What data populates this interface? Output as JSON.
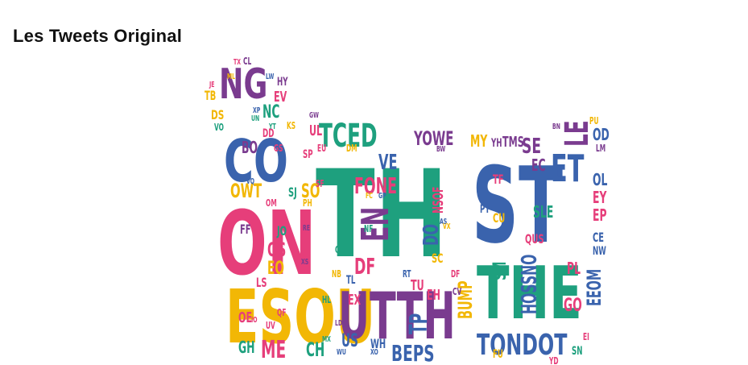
{
  "title": "Les Tweets Original",
  "palette": {
    "blue": "#3a63ad",
    "green": "#1ea07e",
    "purple": "#7a3b8f",
    "pink": "#e63e7a",
    "yellow": "#f2b705"
  },
  "words": [
    {
      "text": "TH",
      "color": "green",
      "vertical": false
    },
    {
      "text": "ST",
      "color": "blue",
      "vertical": false
    },
    {
      "text": "THE",
      "color": "green",
      "vertical": false
    },
    {
      "text": "ON",
      "color": "pink",
      "vertical": false
    },
    {
      "text": "CO",
      "color": "blue",
      "vertical": false
    },
    {
      "text": "ESOU",
      "color": "yellow",
      "vertical": false
    },
    {
      "text": "UTTH",
      "color": "purple",
      "vertical": false
    },
    {
      "text": "NG",
      "color": "purple",
      "vertical": false
    },
    {
      "text": "TCED",
      "color": "green",
      "vertical": false
    },
    {
      "text": "LE",
      "color": "purple",
      "vertical": true
    },
    {
      "text": "ET",
      "color": "blue",
      "vertical": false
    },
    {
      "text": "EN",
      "color": "purple",
      "vertical": true
    },
    {
      "text": "FONE",
      "color": "pink",
      "vertical": false
    },
    {
      "text": "YOWE",
      "color": "purple",
      "vertical": false
    },
    {
      "text": "SE",
      "color": "purple",
      "vertical": false
    },
    {
      "text": "OWT",
      "color": "yellow",
      "vertical": false
    },
    {
      "text": "SO",
      "color": "yellow",
      "vertical": false
    },
    {
      "text": "DF",
      "color": "pink",
      "vertical": false
    },
    {
      "text": "TP",
      "color": "blue",
      "vertical": true
    },
    {
      "text": "BEPS",
      "color": "blue",
      "vertical": false
    },
    {
      "text": "TONDOT",
      "color": "blue",
      "vertical": false
    },
    {
      "text": "HOSSNO",
      "color": "blue",
      "vertical": true
    },
    {
      "text": "EEOM",
      "color": "blue",
      "vertical": true
    },
    {
      "text": "ME",
      "color": "pink",
      "vertical": false
    },
    {
      "text": "CH",
      "color": "green",
      "vertical": false
    },
    {
      "text": "US",
      "color": "blue",
      "vertical": false
    },
    {
      "text": "OS",
      "color": "pink",
      "vertical": false
    },
    {
      "text": "EO",
      "color": "yellow",
      "vertical": false
    },
    {
      "text": "GO",
      "color": "pink",
      "vertical": false
    },
    {
      "text": "PL",
      "color": "pink",
      "vertical": false
    },
    {
      "text": "DS",
      "color": "yellow",
      "vertical": false
    },
    {
      "text": "VE",
      "color": "blue",
      "vertical": false
    },
    {
      "text": "DO",
      "color": "blue",
      "vertical": true
    },
    {
      "text": "BUMP",
      "color": "yellow",
      "vertical": true
    },
    {
      "text": "SM",
      "color": "green",
      "vertical": true
    },
    {
      "text": "QUS",
      "color": "pink",
      "vertical": false
    },
    {
      "text": "OL",
      "color": "blue",
      "vertical": false
    },
    {
      "text": "EY",
      "color": "pink",
      "vertical": false
    },
    {
      "text": "EP",
      "color": "pink",
      "vertical": false
    },
    {
      "text": "OD",
      "color": "blue",
      "vertical": false
    },
    {
      "text": "TMS",
      "color": "purple",
      "vertical": false
    },
    {
      "text": "MY",
      "color": "yellow",
      "vertical": false
    },
    {
      "text": "BO",
      "color": "purple",
      "vertical": false
    },
    {
      "text": "NC",
      "color": "green",
      "vertical": false
    },
    {
      "text": "EV",
      "color": "pink",
      "vertical": false
    },
    {
      "text": "TB",
      "color": "yellow",
      "vertical": false
    },
    {
      "text": "GH",
      "color": "green",
      "vertical": false
    },
    {
      "text": "EX",
      "color": "pink",
      "vertical": false
    },
    {
      "text": "TU",
      "color": "pink",
      "vertical": false
    },
    {
      "text": "EH",
      "color": "pink",
      "vertical": false
    },
    {
      "text": "SC",
      "color": "yellow",
      "vertical": false
    },
    {
      "text": "OE",
      "color": "pink",
      "vertical": false
    },
    {
      "text": "NSOF",
      "color": "pink",
      "vertical": true
    },
    {
      "text": "EC",
      "color": "purple",
      "vertical": false
    },
    {
      "text": "SLE",
      "color": "green",
      "vertical": false
    },
    {
      "text": "UL",
      "color": "pink",
      "vertical": false
    },
    {
      "text": "JO",
      "color": "green",
      "vertical": false
    },
    {
      "text": "FF",
      "color": "purple",
      "vertical": false
    },
    {
      "text": "CU",
      "color": "yellow",
      "vertical": false
    },
    {
      "text": "TF",
      "color": "pink",
      "vertical": false
    },
    {
      "text": "SJ",
      "color": "green",
      "vertical": false
    },
    {
      "text": "HY",
      "color": "purple",
      "vertical": false
    },
    {
      "text": "CL",
      "color": "purple",
      "vertical": false
    },
    {
      "text": "DM",
      "color": "yellow",
      "vertical": false
    },
    {
      "text": "WH",
      "color": "blue",
      "vertical": false
    },
    {
      "text": "LS",
      "color": "pink",
      "vertical": false
    },
    {
      "text": "PT",
      "color": "blue",
      "vertical": false
    },
    {
      "text": "SN",
      "color": "green",
      "vertical": false
    },
    {
      "text": "EI",
      "color": "pink",
      "vertical": false
    },
    {
      "text": "VO",
      "color": "green",
      "vertical": false
    },
    {
      "text": "PU",
      "color": "yellow",
      "vertical": false
    },
    {
      "text": "BN",
      "color": "purple",
      "vertical": false
    },
    {
      "text": "LM",
      "color": "purple",
      "vertical": false
    },
    {
      "text": "UN",
      "color": "green",
      "vertical": false
    },
    {
      "text": "KS",
      "color": "yellow",
      "vertical": false
    },
    {
      "text": "GP",
      "color": "blue",
      "vertical": false
    },
    {
      "text": "FC",
      "color": "yellow",
      "vertical": false
    },
    {
      "text": "CE",
      "color": "blue",
      "vertical": false
    },
    {
      "text": "NW",
      "color": "blue",
      "vertical": false
    },
    {
      "text": "HB",
      "color": "purple",
      "vertical": false
    },
    {
      "text": "TL",
      "color": "blue",
      "vertical": false
    },
    {
      "text": "NB",
      "color": "yellow",
      "vertical": false
    },
    {
      "text": "OU",
      "color": "green",
      "vertical": false
    },
    {
      "text": "DD",
      "color": "pink",
      "vertical": false
    },
    {
      "text": "GS",
      "color": "pink",
      "vertical": false
    },
    {
      "text": "VQ",
      "color": "blue",
      "vertical": false
    },
    {
      "text": "JE",
      "color": "pink",
      "vertical": false
    },
    {
      "text": "SP",
      "color": "pink",
      "vertical": false
    },
    {
      "text": "LD",
      "color": "purple",
      "vertical": false
    },
    {
      "text": "TX",
      "color": "pink",
      "vertical": false
    },
    {
      "text": "YT",
      "color": "green",
      "vertical": false
    },
    {
      "text": "LW",
      "color": "blue",
      "vertical": false
    },
    {
      "text": "ML",
      "color": "yellow",
      "vertical": false
    },
    {
      "text": "OM",
      "color": "pink",
      "vertical": false
    },
    {
      "text": "RE",
      "color": "purple",
      "vertical": false
    },
    {
      "text": "QF",
      "color": "pink",
      "vertical": false
    },
    {
      "text": "SF",
      "color": "pink",
      "vertical": false
    },
    {
      "text": "YH",
      "color": "purple",
      "vertical": false
    },
    {
      "text": "EU",
      "color": "pink",
      "vertical": false
    },
    {
      "text": "WU",
      "color": "blue",
      "vertical": false
    },
    {
      "text": "XS",
      "color": "purple",
      "vertical": false
    },
    {
      "text": "HL",
      "color": "green",
      "vertical": false
    },
    {
      "text": "DF",
      "color": "pink",
      "vertical": false
    },
    {
      "text": "CV",
      "color": "purple",
      "vertical": false
    },
    {
      "text": "PH",
      "color": "yellow",
      "vertical": false
    },
    {
      "text": "AS",
      "color": "blue",
      "vertical": false
    },
    {
      "text": "XP",
      "color": "blue",
      "vertical": false
    },
    {
      "text": "UV",
      "color": "pink",
      "vertical": false
    },
    {
      "text": "FU",
      "color": "yellow",
      "vertical": false
    },
    {
      "text": "MX",
      "color": "green",
      "vertical": false
    },
    {
      "text": "YD",
      "color": "pink",
      "vertical": false
    },
    {
      "text": "RT",
      "color": "blue",
      "vertical": false
    },
    {
      "text": "GW",
      "color": "purple",
      "vertical": false
    },
    {
      "text": "XO",
      "color": "blue",
      "vertical": false
    },
    {
      "text": "NF",
      "color": "green",
      "vertical": false
    },
    {
      "text": "BW",
      "color": "purple",
      "vertical": false
    },
    {
      "text": "IO",
      "color": "pink",
      "vertical": false
    },
    {
      "text": "VX",
      "color": "yellow",
      "vertical": false
    }
  ]
}
